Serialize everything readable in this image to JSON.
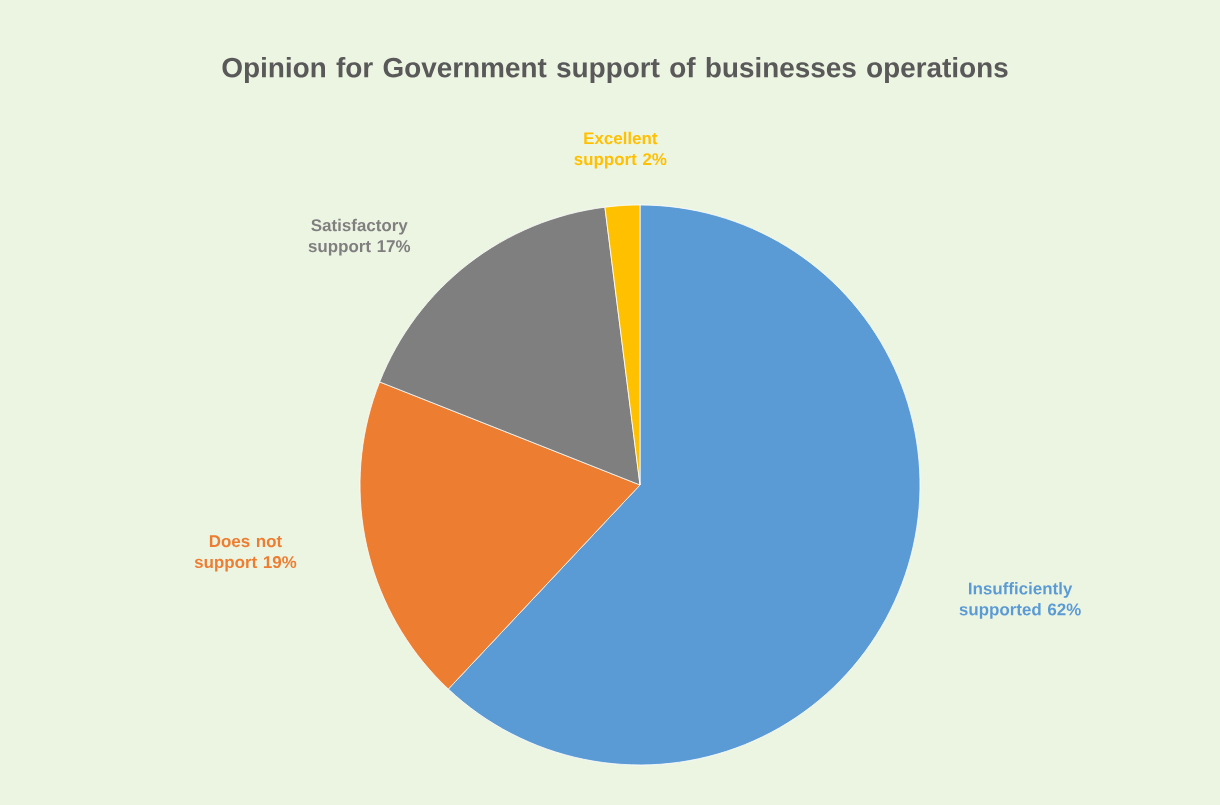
{
  "chart_data": {
    "type": "pie",
    "title": "Opinion for Government support of businesses operations",
    "categories": [
      "Insufficiently supported",
      "Does not support",
      "Satisfactory support",
      "Excellent support"
    ],
    "values": [
      62,
      19,
      17,
      2
    ],
    "value_labels": [
      "62%",
      "19%",
      "17%",
      "2%"
    ],
    "colors": [
      "#5b9bd5",
      "#ed7d31",
      "#7f7f7f",
      "#ffc000"
    ]
  }
}
